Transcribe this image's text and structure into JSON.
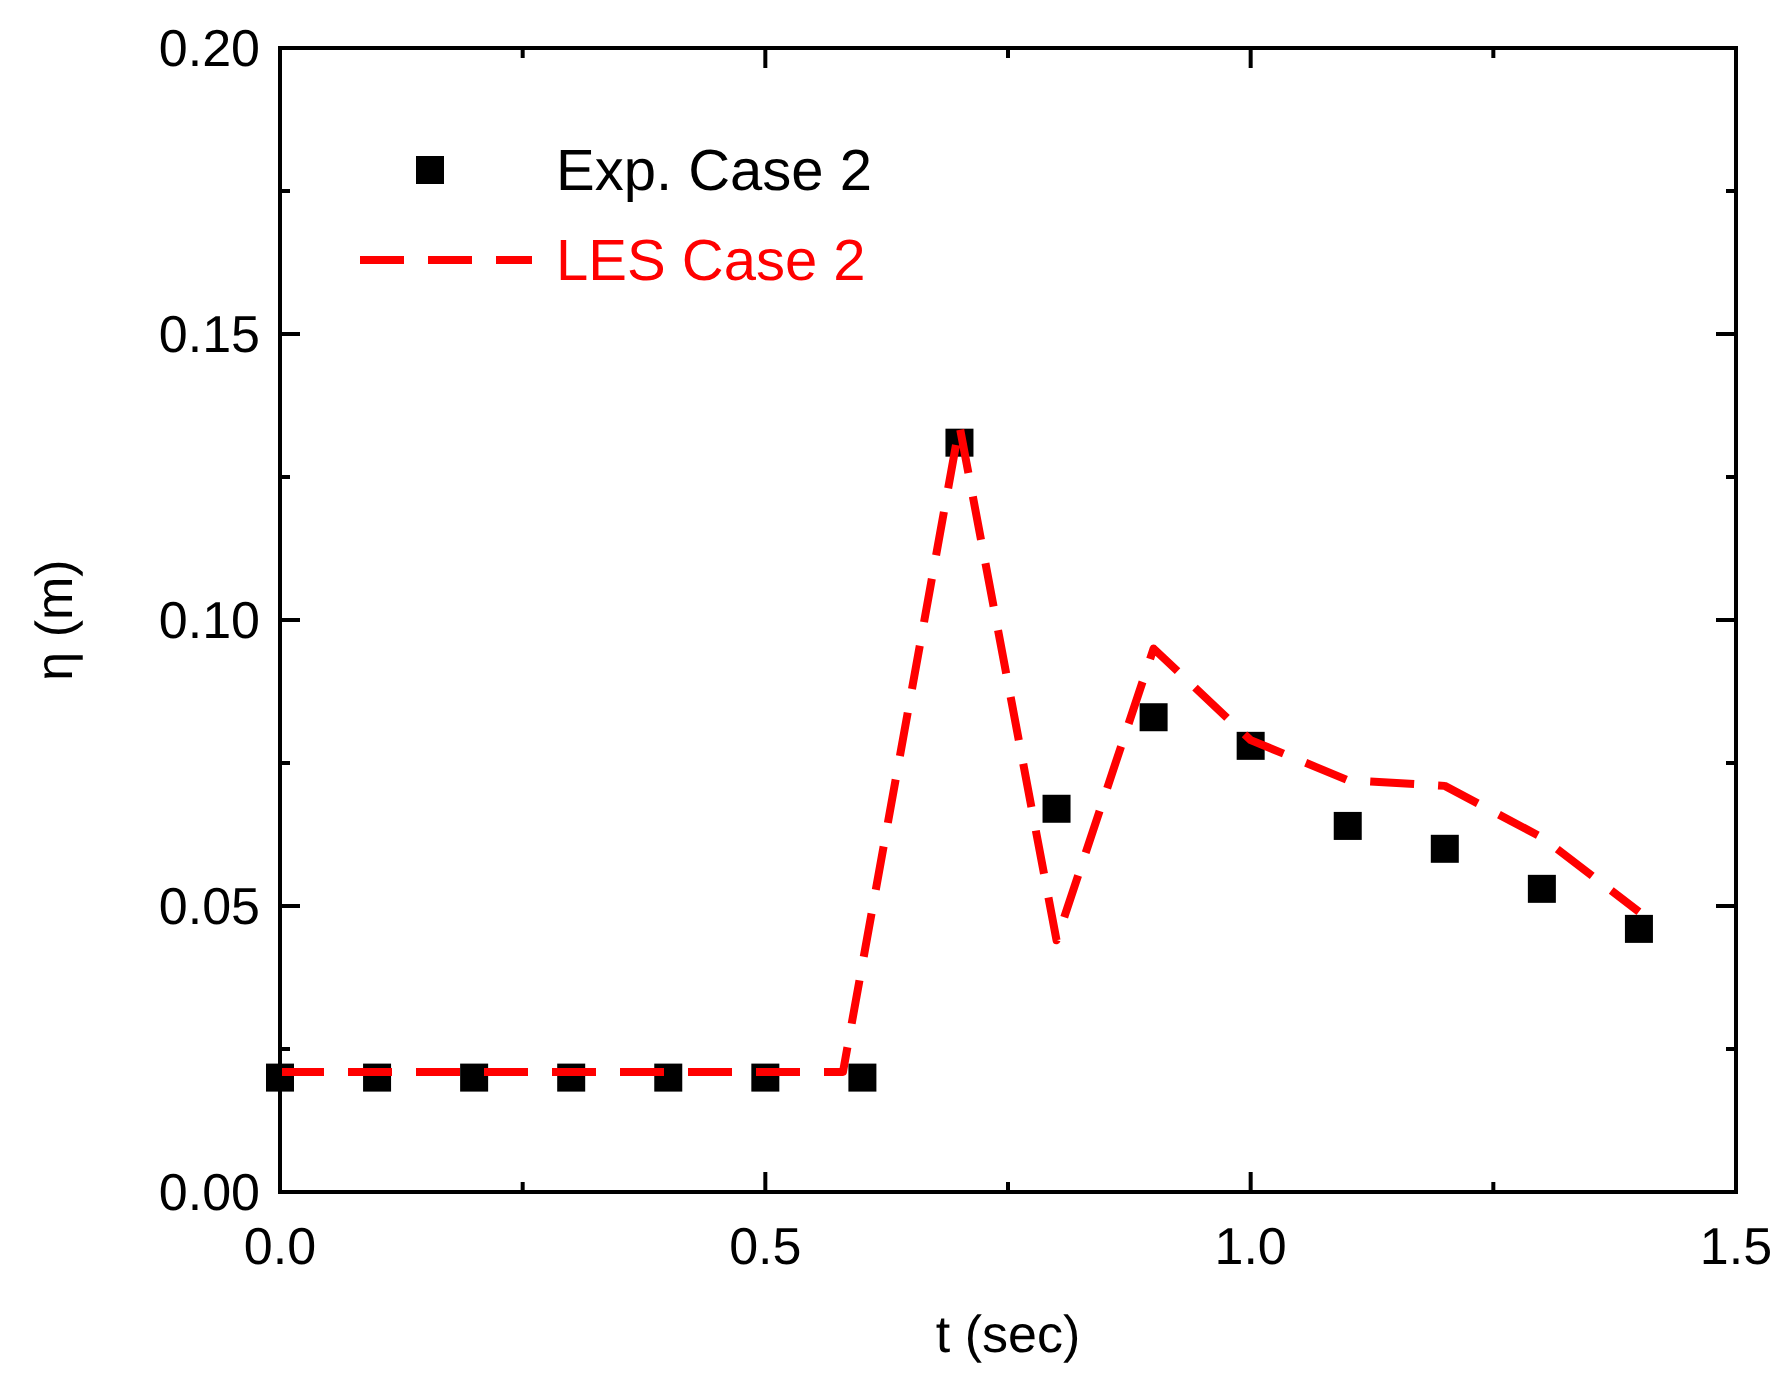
{
  "chart_data": {
    "type": "scatter",
    "xlabel": "t (sec)",
    "ylabel": "η (m)",
    "xlim": [
      0,
      1.5
    ],
    "ylim": [
      0,
      0.2
    ],
    "xticks": [
      {
        "value": 0,
        "label": "0.0"
      },
      {
        "value": 0.25,
        "label": null
      },
      {
        "value": 0.5,
        "label": "0.5"
      },
      {
        "value": 0.75,
        "label": null
      },
      {
        "value": 1,
        "label": "1.0"
      },
      {
        "value": 1.25,
        "label": null
      },
      {
        "value": 1.5,
        "label": "1.5"
      }
    ],
    "yticks": [
      {
        "value": 0,
        "label": "0.00"
      },
      {
        "value": 0.025,
        "label": null
      },
      {
        "value": 0.05,
        "label": "0.05"
      },
      {
        "value": 0.075,
        "label": null
      },
      {
        "value": 0.1,
        "label": "0.10"
      },
      {
        "value": 0.125,
        "label": null
      },
      {
        "value": 0.15,
        "label": "0.15"
      },
      {
        "value": 0.175,
        "label": null
      },
      {
        "value": 0.2,
        "label": "0.20"
      }
    ],
    "legend": "top left",
    "grid": false,
    "series": [
      {
        "name": "Exp. Case 2",
        "marker": "square",
        "color": "#000000",
        "x": [
          0,
          0.1,
          0.2,
          0.3,
          0.4,
          0.5,
          0.6,
          0.7,
          0.8,
          0.9,
          1.0,
          1.1,
          1.2,
          1.3,
          1.4
        ],
        "values": [
          0.02,
          0.02,
          0.02,
          0.02,
          0.02,
          0.02,
          0.02,
          0.131,
          0.067,
          0.083,
          0.078,
          0.064,
          0.06,
          0.053,
          0.046
        ]
      },
      {
        "name": "LES Case 2",
        "type": "line",
        "line_style": "dashed",
        "color": "#ff0000",
        "x": [
          0,
          0.58,
          0.7,
          0.8,
          0.9,
          1.0,
          1.1,
          1.2,
          1.3,
          1.4
        ],
        "values": [
          0.021,
          0.021,
          0.134,
          0.044,
          0.095,
          0.079,
          0.072,
          0.071,
          0.062,
          0.049
        ]
      }
    ]
  }
}
